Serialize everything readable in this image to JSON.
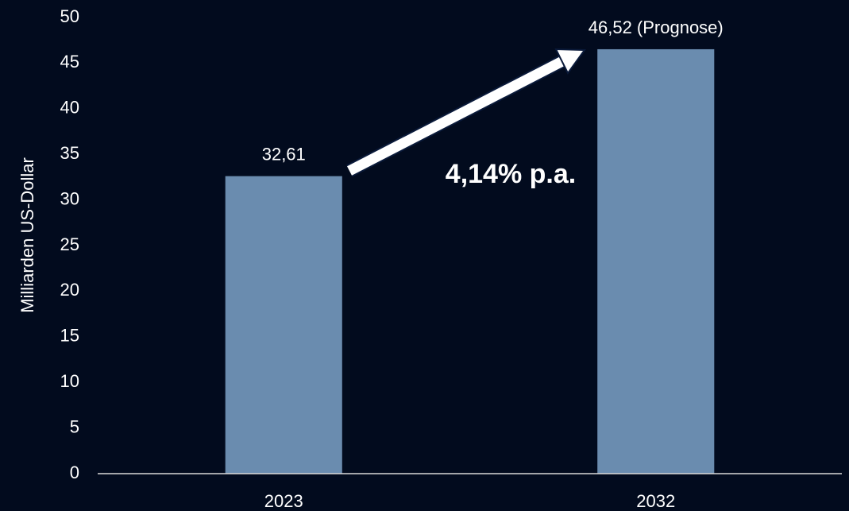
{
  "chart_data": {
    "type": "bar",
    "y_label": "Milliarden US-Dollar",
    "annotation": "4,14% p.a.",
    "categories": [
      "2023",
      "2032"
    ],
    "values": [
      32.61,
      46.52
    ],
    "value_labels": [
      "32,61",
      "46,52 (Prognose)"
    ],
    "color": "#6a8caf",
    "ylim": [
      0,
      50
    ],
    "yticks": [
      0,
      5,
      10,
      15,
      20,
      25,
      30,
      35,
      40,
      45,
      50
    ],
    "grid": false
  }
}
